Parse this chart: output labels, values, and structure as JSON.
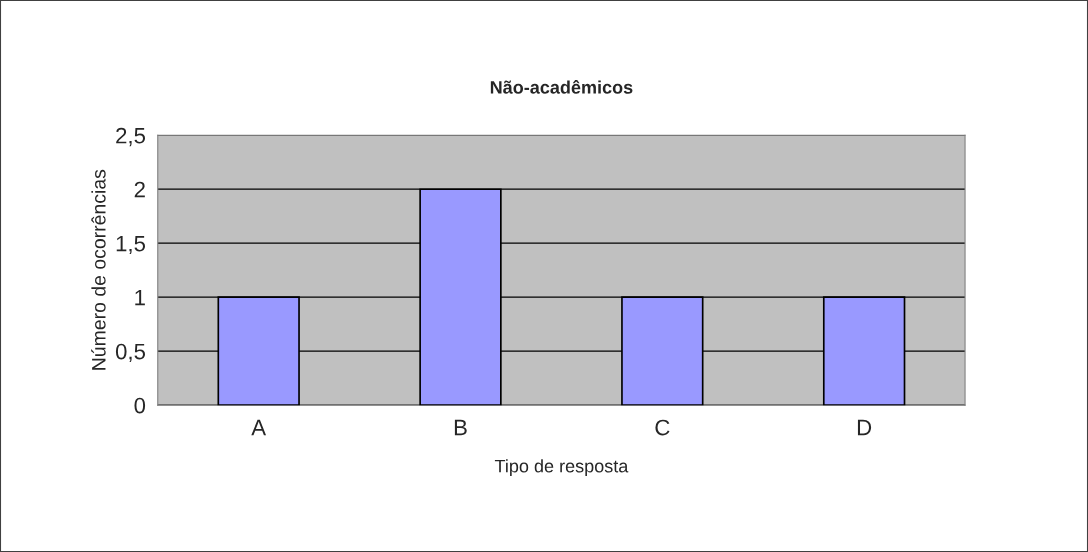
{
  "chart_data": {
    "type": "bar",
    "title": "Não-acadêmicos",
    "xlabel": "Tipo de resposta",
    "ylabel": "Número de ocorrências",
    "categories": [
      "A",
      "B",
      "C",
      "D"
    ],
    "values": [
      1,
      2,
      1,
      1
    ],
    "color": "#9999ff",
    "ylim": [
      0,
      2.5
    ],
    "yticks": [
      0,
      {
        "value": 0.5,
        "label": "0,5"
      },
      1,
      {
        "value": 1.5,
        "label": "1,5"
      },
      2,
      {
        "value": 2.5,
        "label": "2,5"
      }
    ],
    "grid": "y"
  }
}
